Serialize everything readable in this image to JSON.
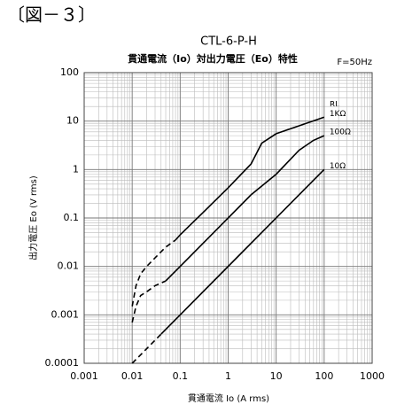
{
  "header": "〔図－３〕",
  "chart_data": {
    "type": "line",
    "title": "CTL-6-P-H",
    "subtitle": "貫通電流（Io）対出力電圧（Eo）特性",
    "annotation": "F=50Hz",
    "x_label": "貫通電流 Io (A rms)",
    "y_label": "出力電圧 Eo (V rms)",
    "legend_title": "RL",
    "log_x": true,
    "log_y": true,
    "grid": true,
    "color": "#000000",
    "xlim": [
      0.001,
      1000
    ],
    "ylim": [
      0.0001,
      100
    ],
    "xticks": [
      0.001,
      0.01,
      0.1,
      1,
      10,
      100,
      1000
    ],
    "yticks": [
      0.0001,
      0.001,
      0.01,
      0.1,
      1,
      10,
      100
    ],
    "xminorticks": [
      0.002,
      0.003,
      0.004,
      0.005,
      0.006,
      0.007,
      0.008,
      0.009,
      0.02,
      0.03,
      0.04,
      0.05,
      0.06,
      0.07,
      0.08,
      0.09,
      0.2,
      0.3,
      0.4,
      0.5,
      0.6,
      0.7,
      0.8,
      0.9,
      2,
      3,
      4,
      5,
      6,
      7,
      8,
      9,
      20,
      30,
      40,
      50,
      60,
      70,
      80,
      90,
      200,
      300,
      400,
      500,
      600,
      700,
      800,
      900
    ],
    "yminorticks": [
      0.0002,
      0.0003,
      0.0004,
      0.0005,
      0.0006,
      0.0007,
      0.0008,
      0.0009,
      0.002,
      0.003,
      0.004,
      0.005,
      0.006,
      0.007,
      0.008,
      0.009,
      0.02,
      0.03,
      0.04,
      0.05,
      0.06,
      0.07,
      0.08,
      0.09,
      0.2,
      0.3,
      0.4,
      0.5,
      0.6,
      0.7,
      0.8,
      0.9,
      2,
      3,
      4,
      5,
      6,
      7,
      8,
      9,
      20,
      30,
      40,
      50,
      60,
      70,
      80,
      90
    ],
    "series": [
      {
        "name": "1KΩ",
        "dashed_x": [
          0.01,
          0.012,
          0.015,
          0.02,
          0.03,
          0.05,
          0.08
        ],
        "dashed_values": [
          0.0015,
          0.004,
          0.007,
          0.01,
          0.015,
          0.025,
          0.035
        ],
        "x": [
          0.08,
          0.1,
          0.3,
          1,
          3,
          5,
          10,
          30,
          100
        ],
        "values": [
          0.035,
          0.045,
          0.13,
          0.42,
          1.3,
          3.5,
          5.5,
          8,
          12
        ]
      },
      {
        "name": "100Ω",
        "dashed_x": [
          0.01,
          0.012,
          0.015,
          0.02,
          0.03,
          0.05
        ],
        "dashed_values": [
          0.0007,
          0.0015,
          0.0025,
          0.003,
          0.004,
          0.005
        ],
        "x": [
          0.05,
          0.1,
          0.3,
          1,
          3,
          10,
          30,
          60,
          100
        ],
        "values": [
          0.005,
          0.01,
          0.03,
          0.1,
          0.3,
          0.8,
          2.5,
          4,
          5
        ]
      },
      {
        "name": "10Ω",
        "dashed_x": [
          0.01,
          0.04
        ],
        "dashed_values": [
          0.0001,
          0.0004
        ],
        "x": [
          0.04,
          100
        ],
        "values": [
          0.0004,
          1
        ]
      }
    ]
  }
}
